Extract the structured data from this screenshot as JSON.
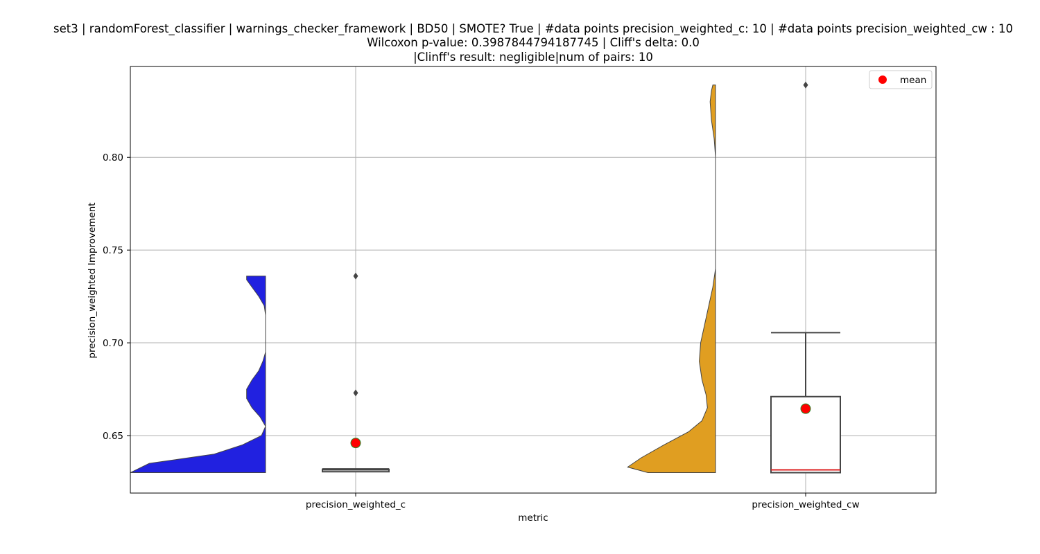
{
  "chart_data": {
    "type": "raincloud",
    "title_lines": [
      "set3 | randomForest_classifier | warnings_checker_framework | BD50 | SMOTE? True | #data points precision_weighted_c: 10 | #data points precision_weighted_cw : 10",
      "Wilcoxon p-value: 0.3987844794187745 | Cliff's delta: 0.0",
      "|Clinff's result: negligible|num of pairs: 10"
    ],
    "xlabel": "metric",
    "ylabel": "precision_weighted Improvement",
    "ylim": [
      0.619,
      0.849
    ],
    "yticks": [
      0.65,
      0.7,
      0.75,
      0.8
    ],
    "ytick_labels": [
      "0.65",
      "0.70",
      "0.75",
      "0.80"
    ],
    "grid": true,
    "legend": {
      "position": "top-right",
      "label": "mean",
      "color": "#ff0000"
    },
    "categories": [
      "precision_weighted_c",
      "precision_weighted_cw"
    ],
    "series": [
      {
        "name": "precision_weighted_c",
        "violin_color": "#2121e0",
        "density": [
          [
            0.63,
            1.0
          ],
          [
            0.635,
            0.86
          ],
          [
            0.64,
            0.38
          ],
          [
            0.645,
            0.17
          ],
          [
            0.65,
            0.03
          ],
          [
            0.655,
            0.0
          ],
          [
            0.66,
            0.04
          ],
          [
            0.665,
            0.1
          ],
          [
            0.67,
            0.14
          ],
          [
            0.675,
            0.14
          ],
          [
            0.68,
            0.1
          ],
          [
            0.685,
            0.05
          ],
          [
            0.69,
            0.02
          ],
          [
            0.695,
            0.0
          ],
          [
            0.7,
            0.0
          ],
          [
            0.705,
            0.0
          ],
          [
            0.71,
            0.0
          ],
          [
            0.715,
            0.0
          ],
          [
            0.72,
            0.01
          ],
          [
            0.725,
            0.05
          ],
          [
            0.73,
            0.1
          ],
          [
            0.734,
            0.14
          ],
          [
            0.736,
            0.14
          ]
        ],
        "box": {
          "q1": 0.6305,
          "median": 0.6315,
          "q3": 0.6318,
          "whisker_low": 0.6303,
          "whisker_high": 0.632
        },
        "outliers": [
          0.736,
          0.673
        ],
        "mean": 0.646,
        "median_color": "#444444"
      },
      {
        "name": "precision_weighted_cw",
        "violin_color": "#e09e21",
        "density": [
          [
            0.63,
            0.5
          ],
          [
            0.633,
            0.65
          ],
          [
            0.638,
            0.55
          ],
          [
            0.645,
            0.38
          ],
          [
            0.652,
            0.2
          ],
          [
            0.658,
            0.1
          ],
          [
            0.665,
            0.06
          ],
          [
            0.672,
            0.07
          ],
          [
            0.68,
            0.1
          ],
          [
            0.69,
            0.12
          ],
          [
            0.7,
            0.11
          ],
          [
            0.71,
            0.08
          ],
          [
            0.72,
            0.05
          ],
          [
            0.73,
            0.02
          ],
          [
            0.74,
            0.0
          ],
          [
            0.76,
            0.0
          ],
          [
            0.78,
            0.0
          ],
          [
            0.8,
            0.0
          ],
          [
            0.81,
            0.01
          ],
          [
            0.82,
            0.03
          ],
          [
            0.83,
            0.04
          ],
          [
            0.836,
            0.03
          ],
          [
            0.839,
            0.02
          ]
        ],
        "box": {
          "q1": 0.63,
          "median": 0.6315,
          "q3": 0.671,
          "whisker_low": 0.63,
          "whisker_high": 0.7055
        },
        "outliers": [
          0.839
        ],
        "mean": 0.6645,
        "median_color": "#dd2222"
      }
    ]
  }
}
